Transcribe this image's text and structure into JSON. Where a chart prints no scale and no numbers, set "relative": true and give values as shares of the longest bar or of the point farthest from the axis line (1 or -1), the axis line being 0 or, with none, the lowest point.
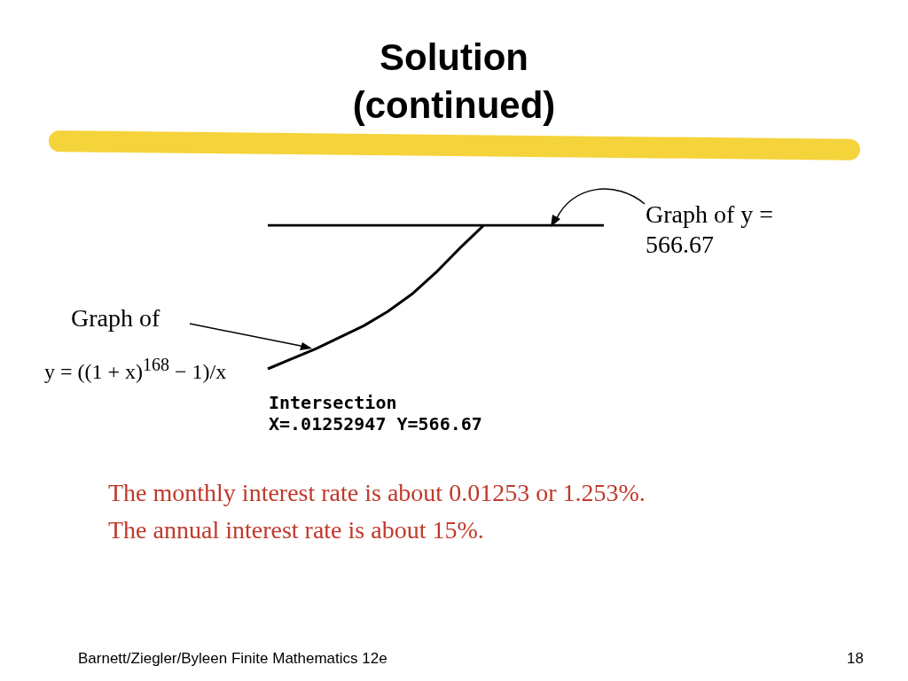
{
  "chart_data": {
    "type": "line",
    "title": "Solution (continued)",
    "relative": true,
    "legend": false,
    "marker": "none",
    "categories": [
      null,
      null,
      null,
      null,
      null,
      null,
      null,
      null,
      null,
      null,
      null,
      null,
      null,
      null,
      null
    ],
    "series": [
      {
        "color": "#000000",
        "values": [
          0,
          0.07,
          0.14,
          0.22,
          0.3,
          0.4,
          0.52,
          0.67,
          0.84,
          1,
          null,
          null,
          null,
          null,
          null
        ]
      },
      {
        "color": "#000000",
        "values": [
          1,
          1,
          1,
          1,
          1,
          1,
          1,
          1,
          1,
          1,
          1,
          1,
          1,
          1,
          1
        ]
      }
    ],
    "annotations": [
      "Graph of y = 566.67",
      "Graph of",
      "y = ((1 + x)$^{168}$ − 1)/x",
      "Intersection",
      "X=.01252947 Y=566.67",
      "The monthly interest rate is about 0.01253 or 1.253%.",
      "The annual interest rate is about 15%.",
      "Barnett/Ziegler/Byleen Finite Mathematics 12e",
      "18"
    ]
  }
}
